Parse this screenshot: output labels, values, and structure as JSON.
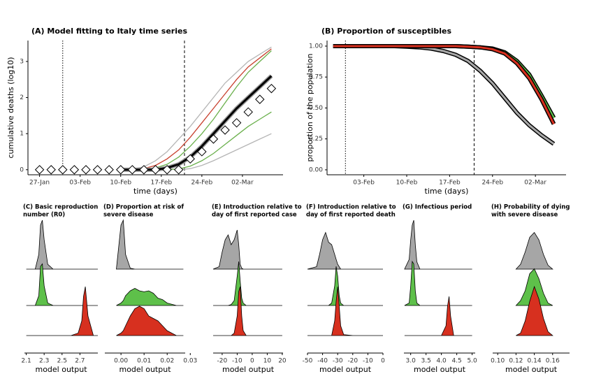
{
  "chart_data": [
    {
      "type": "line",
      "title": "(A) Model fitting to Italy time series",
      "xlabel": "time (days)",
      "ylabel": "cumulative deaths (log10)",
      "x": [
        "27-Jan",
        "29-Jan",
        "31-Jan",
        "02-Feb",
        "04-Feb",
        "06-Feb",
        "08-Feb",
        "10-Feb",
        "12-Feb",
        "14-Feb",
        "16-Feb",
        "18-Feb",
        "20-Feb",
        "22-Feb",
        "24-Feb",
        "26-Feb",
        "28-Feb",
        "01-Mar",
        "03-Mar",
        "05-Mar",
        "07-Mar"
      ],
      "xlim": [
        "25-Jan",
        "09-Mar"
      ],
      "xticks": [
        "27-Jan",
        "03-Feb",
        "10-Feb",
        "17-Feb",
        "24-Feb",
        "02-Mar"
      ],
      "ylim": [
        -0.14,
        3.58
      ],
      "yticks": [
        0,
        1,
        2,
        3
      ],
      "vlines": [
        {
          "x": "31-Jan",
          "style": "dotted"
        },
        {
          "x": "21-Feb",
          "style": "dashed"
        }
      ],
      "series": [
        {
          "color": "#b5b5b5",
          "values": [
            null,
            null,
            null,
            null,
            null,
            null,
            null,
            0,
            0.02,
            0.08,
            0.25,
            0.5,
            0.85,
            1.2,
            1.6,
            2.0,
            2.4,
            2.7,
            3.0,
            3.2,
            3.4
          ]
        },
        {
          "color": "#c8402e",
          "values": [
            null,
            null,
            null,
            null,
            null,
            null,
            null,
            0,
            0,
            0.03,
            0.12,
            0.3,
            0.55,
            0.9,
            1.3,
            1.7,
            2.1,
            2.5,
            2.85,
            3.1,
            3.35
          ]
        },
        {
          "color": "#6ab04c",
          "values": [
            null,
            null,
            null,
            null,
            null,
            null,
            null,
            null,
            null,
            0,
            0.05,
            0.15,
            0.35,
            0.65,
            1.0,
            1.4,
            1.85,
            2.3,
            2.7,
            3.0,
            3.3
          ]
        },
        {
          "color": "#6ab04c",
          "values": [
            null,
            null,
            null,
            null,
            null,
            null,
            null,
            null,
            null,
            null,
            null,
            0,
            0.02,
            0.1,
            0.25,
            0.45,
            0.7,
            0.95,
            1.2,
            1.4,
            1.6
          ]
        },
        {
          "color": "#b5b5b5",
          "values": [
            null,
            null,
            null,
            null,
            null,
            null,
            null,
            null,
            null,
            null,
            null,
            null,
            0,
            0.03,
            0.12,
            0.25,
            0.4,
            0.55,
            0.7,
            0.85,
            1.0
          ]
        },
        {
          "color": "#000000",
          "values": [
            null,
            null,
            null,
            null,
            null,
            null,
            null,
            0,
            0,
            0,
            0,
            0.05,
            0.15,
            0.35,
            0.65,
            1.0,
            1.35,
            1.7,
            2.0,
            2.3,
            2.6
          ]
        },
        {
          "color": "#000000",
          "marker": "diamond",
          "values": [
            0,
            0,
            0,
            0,
            0,
            0,
            0,
            0,
            0,
            0,
            0,
            0,
            0,
            0.3,
            0.5,
            0.85,
            1.1,
            1.3,
            1.6,
            1.95,
            2.25
          ]
        }
      ]
    },
    {
      "type": "line",
      "title": "(B) Proportion of susceptibles",
      "xlabel": "time (days)",
      "ylabel": "proportion of the population",
      "outline": true,
      "x": [
        "29-Jan",
        "31-Jan",
        "02-Feb",
        "04-Feb",
        "06-Feb",
        "08-Feb",
        "10-Feb",
        "12-Feb",
        "14-Feb",
        "16-Feb",
        "18-Feb",
        "20-Feb",
        "22-Feb",
        "24-Feb",
        "26-Feb",
        "28-Feb",
        "01-Mar",
        "03-Mar",
        "05-Mar"
      ],
      "xlim": [
        "28-Jan",
        "07-Mar"
      ],
      "xticks": [
        "03-Feb",
        "10-Feb",
        "17-Feb",
        "24-Feb",
        "02-Mar"
      ],
      "ylim": [
        -0.04,
        1.045
      ],
      "yticks": [
        {
          "value": 0,
          "label": "0.00"
        },
        {
          "value": 0.25,
          "label": "0.25"
        },
        {
          "value": 0.5,
          "label": "0.50"
        },
        {
          "value": 0.75,
          "label": "0.75"
        },
        {
          "value": 1,
          "label": "1.00"
        }
      ],
      "vlines": [
        {
          "x": "31-Jan",
          "style": "dotted"
        },
        {
          "x": "21-Feb",
          "style": "dashed"
        }
      ],
      "series": [
        {
          "color": "#a8a8a8",
          "values": [
            1,
            1,
            1,
            1,
            1,
            1,
            0.995,
            0.99,
            0.98,
            0.96,
            0.93,
            0.88,
            0.8,
            0.7,
            0.58,
            0.46,
            0.36,
            0.28,
            0.21
          ]
        },
        {
          "color": "#5ec04a",
          "values": [
            1,
            1,
            1,
            1,
            1,
            1,
            1,
            1,
            1,
            1,
            1,
            0.995,
            0.99,
            0.98,
            0.95,
            0.88,
            0.77,
            0.6,
            0.42
          ]
        },
        {
          "color": "#d7301f",
          "values": [
            1,
            1,
            1,
            1,
            1,
            1,
            1,
            1,
            1,
            1,
            1,
            0.995,
            0.99,
            0.975,
            0.94,
            0.86,
            0.74,
            0.57,
            0.37
          ]
        }
      ]
    },
    {
      "type": "ridgeline",
      "title": [
        "(C) Basic reproduction",
        "number (R0)"
      ],
      "xlabel": "model output",
      "xlim": [
        2.08,
        2.9
      ],
      "xticks": [
        2.1,
        2.3,
        2.5,
        2.7
      ],
      "x": [
        2.1,
        2.2,
        2.24,
        2.26,
        2.28,
        2.3,
        2.34,
        2.4,
        2.6,
        2.68,
        2.72,
        2.74,
        2.76,
        2.79,
        2.85,
        2.9
      ],
      "series": [
        {
          "color": "#a6a6a6",
          "values": [
            0,
            0,
            0.3,
            0.9,
            1.0,
            0.6,
            0.1,
            0,
            0,
            0,
            0,
            0,
            0,
            0,
            0,
            0
          ]
        },
        {
          "color": "#5ec04a",
          "values": [
            0,
            0,
            0.2,
            0.8,
            0.85,
            0.4,
            0.05,
            0,
            0,
            0,
            0,
            0,
            0,
            0,
            0,
            0
          ]
        },
        {
          "color": "#d7301f",
          "values": [
            0,
            0,
            0,
            0,
            0,
            0,
            0,
            0,
            0,
            0.05,
            0.3,
            0.8,
            1.0,
            0.4,
            0,
            0
          ]
        }
      ]
    },
    {
      "type": "ridgeline",
      "title": [
        "(D) Proportion at risk of",
        "severe disease"
      ],
      "xlabel": "model output",
      "xlim": [
        -0.007,
        0.0278
      ],
      "xticks": [
        {
          "value": 0,
          "label": "0.00"
        },
        {
          "value": 0.01,
          "label": "0.01"
        },
        {
          "value": 0.02,
          "label": "0.02"
        },
        {
          "value": 0.03,
          "label": "0.03"
        }
      ],
      "x": [
        -0.002,
        0,
        0.001,
        0.002,
        0.004,
        0.006,
        0.008,
        0.01,
        0.012,
        0.014,
        0.016,
        0.018,
        0.02,
        0.024,
        0.027
      ],
      "series": [
        {
          "color": "#a6a6a6",
          "values": [
            0,
            0.9,
            1.0,
            0.3,
            0.02,
            0,
            0,
            0,
            0,
            0,
            0,
            0,
            0,
            0,
            0
          ]
        },
        {
          "color": "#5ec04a",
          "values": [
            0,
            0.05,
            0.1,
            0.2,
            0.3,
            0.35,
            0.3,
            0.28,
            0.3,
            0.25,
            0.15,
            0.12,
            0.05,
            0,
            0
          ]
        },
        {
          "color": "#d7301f",
          "values": [
            0,
            0.05,
            0.1,
            0.2,
            0.4,
            0.55,
            0.6,
            0.55,
            0.4,
            0.35,
            0.3,
            0.2,
            0.1,
            0,
            0
          ]
        }
      ]
    },
    {
      "type": "ridgeline",
      "title": [
        "(E) Introduction relative to",
        "day of first reported case"
      ],
      "xlabel": "model output",
      "xlim": [
        -26,
        20.5
      ],
      "xticks": [
        -20,
        -10,
        0,
        10,
        20
      ],
      "x": [
        -26,
        -22,
        -20,
        -18,
        -16,
        -14,
        -12,
        -10,
        -9,
        -8,
        -7,
        -6,
        -4,
        0,
        10,
        20
      ],
      "series": [
        {
          "color": "#a6a6a6",
          "values": [
            0,
            0.05,
            0.35,
            0.6,
            0.7,
            0.5,
            0.6,
            0.8,
            0.5,
            0.1,
            0.02,
            0,
            0,
            0,
            0,
            0
          ]
        },
        {
          "color": "#5ec04a",
          "values": [
            0,
            0,
            0,
            0,
            0,
            0.02,
            0.1,
            0.6,
            0.9,
            0.5,
            0.15,
            0.05,
            0,
            0,
            0,
            0
          ]
        },
        {
          "color": "#d7301f",
          "values": [
            0,
            0,
            0,
            0,
            0,
            0,
            0.05,
            0.4,
            0.9,
            1.0,
            0.4,
            0.1,
            0,
            0,
            0,
            0
          ]
        }
      ]
    },
    {
      "type": "ridgeline",
      "title": [
        "(F) Introduction relative to",
        "day of first reported death"
      ],
      "xlabel": "model output",
      "xlim": [
        -50,
        0
      ],
      "xticks": [
        -50,
        -40,
        -30,
        -20,
        -10,
        0
      ],
      "x": [
        -50,
        -44,
        -42,
        -40,
        -38,
        -36,
        -34,
        -32,
        -31,
        -30,
        -29,
        -28,
        -26,
        -20,
        0
      ],
      "series": [
        {
          "color": "#a6a6a6",
          "values": [
            0,
            0.05,
            0.3,
            0.6,
            0.75,
            0.55,
            0.5,
            0.3,
            0.2,
            0.1,
            0.05,
            0,
            0,
            0,
            0
          ]
        },
        {
          "color": "#5ec04a",
          "values": [
            0,
            0,
            0,
            0,
            0,
            0,
            0.05,
            0.4,
            0.8,
            0.6,
            0.2,
            0.05,
            0,
            0,
            0
          ]
        },
        {
          "color": "#d7301f",
          "values": [
            0,
            0,
            0,
            0,
            0,
            0,
            0,
            0.3,
            0.7,
            1.0,
            0.6,
            0.2,
            0.02,
            0,
            0
          ]
        }
      ]
    },
    {
      "type": "ridgeline",
      "title": [
        "(G) Infectious period"
      ],
      "xlabel": "model output",
      "xlim": [
        2.78,
        5.1
      ],
      "xticks": [
        {
          "value": 3,
          "label": "3.0"
        },
        3.5,
        {
          "value": 4,
          "label": "4.0"
        },
        4.5,
        {
          "value": 5,
          "label": "5.0"
        }
      ],
      "x": [
        2.8,
        2.95,
        3.0,
        3.05,
        3.1,
        3.15,
        3.2,
        3.3,
        4.0,
        4.15,
        4.2,
        4.25,
        4.3,
        4.4,
        5.0
      ],
      "series": [
        {
          "color": "#a6a6a6",
          "values": [
            0,
            0.2,
            0.6,
            0.9,
            1.0,
            0.5,
            0.15,
            0,
            0,
            0,
            0,
            0,
            0,
            0,
            0
          ]
        },
        {
          "color": "#5ec04a",
          "values": [
            0,
            0.05,
            0.4,
            0.9,
            0.85,
            0.3,
            0.05,
            0,
            0,
            0,
            0,
            0,
            0,
            0,
            0
          ]
        },
        {
          "color": "#d7301f",
          "values": [
            0,
            0,
            0,
            0,
            0,
            0,
            0,
            0,
            0,
            0.2,
            0.6,
            0.8,
            0.4,
            0,
            0
          ]
        }
      ]
    },
    {
      "type": "ridgeline",
      "title": [
        "(H) Probability of dying",
        "with severe disease"
      ],
      "xlabel": "model output",
      "xlim": [
        0.0945,
        0.1785
      ],
      "xticks": [
        {
          "value": 0.1,
          "label": "0.10"
        },
        0.12,
        0.14,
        0.16
      ],
      "x": [
        0.12,
        0.125,
        0.13,
        0.135,
        0.14,
        0.145,
        0.15,
        0.155,
        0.16
      ],
      "series": [
        {
          "color": "#a6a6a6",
          "values": [
            0,
            0.1,
            0.35,
            0.65,
            0.75,
            0.6,
            0.3,
            0.08,
            0
          ]
        },
        {
          "color": "#5ec04a",
          "values": [
            0,
            0.1,
            0.3,
            0.65,
            0.75,
            0.55,
            0.25,
            0.05,
            0
          ]
        },
        {
          "color": "#d7301f",
          "values": [
            0,
            0.05,
            0.3,
            0.7,
            1.0,
            0.75,
            0.35,
            0.08,
            0
          ]
        }
      ]
    }
  ]
}
